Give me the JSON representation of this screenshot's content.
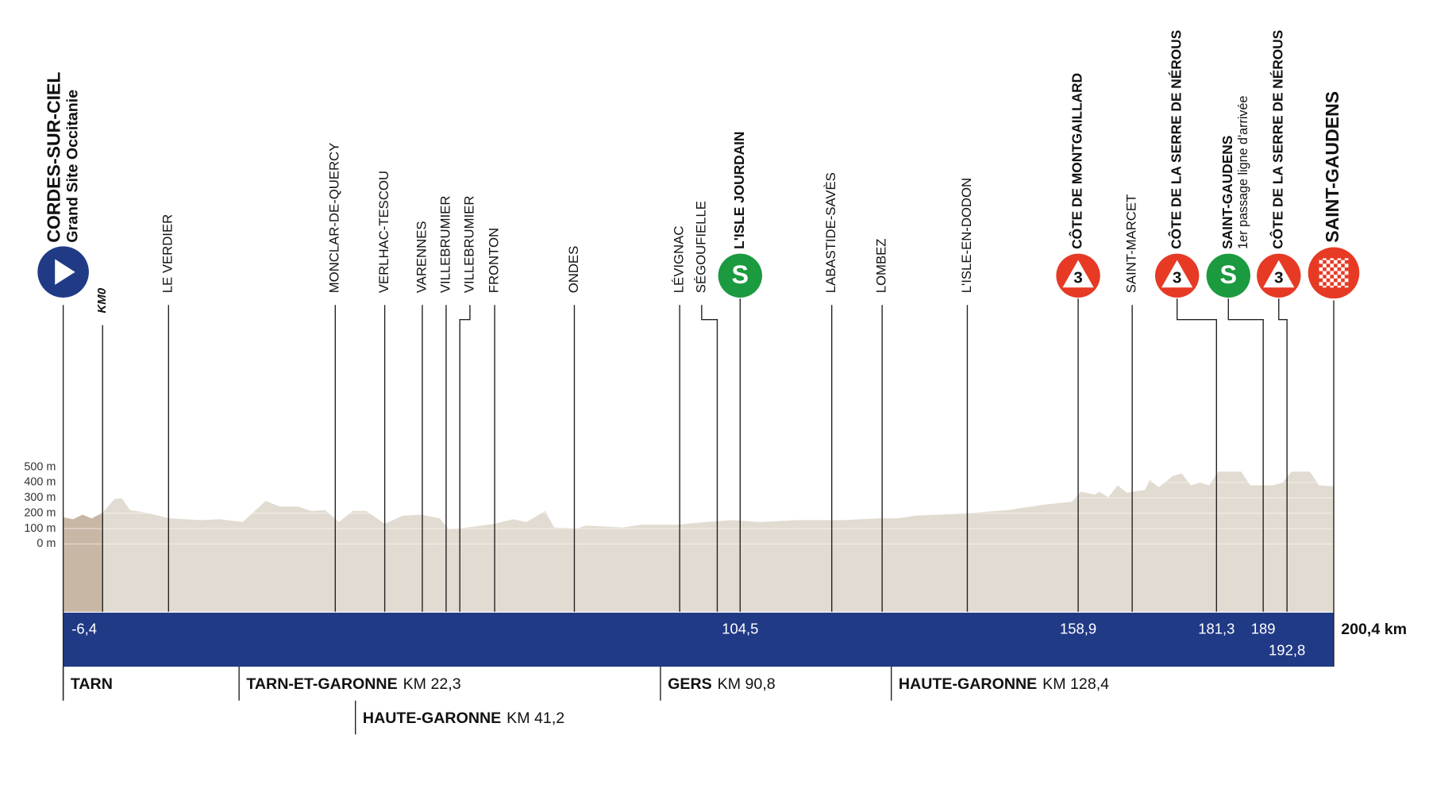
{
  "start": {
    "name": "CORDES-SUR-CIEL",
    "subtitle": "Grand Site Occitanie"
  },
  "km0": "KM0",
  "places": [
    {
      "name": "LE VERDIER"
    },
    {
      "name": "MONCLAR-DE-QUERCY"
    },
    {
      "name": "VERLHAC-TESCOU"
    },
    {
      "name": "VARENNES"
    },
    {
      "name": "VILLEBRUMIER"
    },
    {
      "name": "VILLEBRUMIER"
    },
    {
      "name": "FRONTON"
    },
    {
      "name": "ONDES"
    },
    {
      "name": "LÉVIGNAC"
    },
    {
      "name": "SÉGOUFIELLE"
    },
    {
      "name": "L'ISLE JOURDAIN",
      "km": "104,5"
    },
    {
      "name": "LABASTIDE-SAVÈS"
    },
    {
      "name": "LOMBEZ"
    },
    {
      "name": "L'ISLE-EN-DODON"
    },
    {
      "name": "CÔTE DE MONTGAILLARD",
      "km": "158,9"
    },
    {
      "name": "SAINT-MARCET"
    },
    {
      "name": "CÔTE DE LA SERRE DE NÉROUS",
      "km": "181,3"
    },
    {
      "name": "SAINT-GAUDENS",
      "subtitle": "1er passage ligne d'arrivée",
      "km": "189"
    },
    {
      "name": "CÔTE DE LA SERRE DE NÉROUS",
      "km": "192,8"
    }
  ],
  "finish": {
    "name": "SAINT-GAUDENS",
    "km": "200,4 km"
  },
  "start_km": "-6,4",
  "altitude_labels": [
    "500 m",
    "400 m",
    "300 m",
    "200 m",
    "100 m",
    "0 m"
  ],
  "regions": [
    {
      "name": "TARN"
    },
    {
      "name": "TARN-ET-GARONNE",
      "km": "KM 22,3"
    },
    {
      "name": "HAUTE-GARONNE",
      "km": "KM 41,2"
    },
    {
      "name": "GERS",
      "km": "KM 90,8"
    },
    {
      "name": "HAUTE-GARONNE",
      "km": "KM 128,4"
    }
  ],
  "icon_labels": {
    "climb": "3",
    "sprint": "S"
  }
}
